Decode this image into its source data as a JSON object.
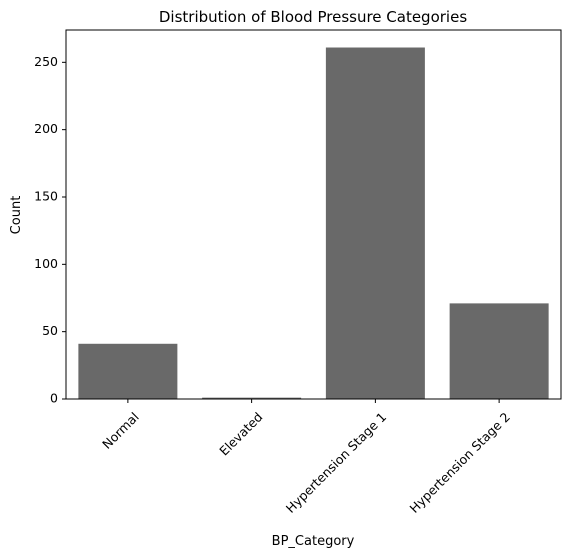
{
  "chart_data": {
    "type": "bar",
    "title": "Distribution of Blood Pressure Categories",
    "xlabel": "BP_Category",
    "ylabel": "Count",
    "categories": [
      "Normal",
      "Elevated",
      "Hypertension Stage 1",
      "Hypertension Stage 2"
    ],
    "values": [
      41,
      1,
      261,
      71
    ],
    "ylim": [
      0,
      274
    ],
    "yticks": [
      0,
      50,
      100,
      150,
      200,
      250
    ],
    "bar_color": "#696969",
    "grid": false
  }
}
